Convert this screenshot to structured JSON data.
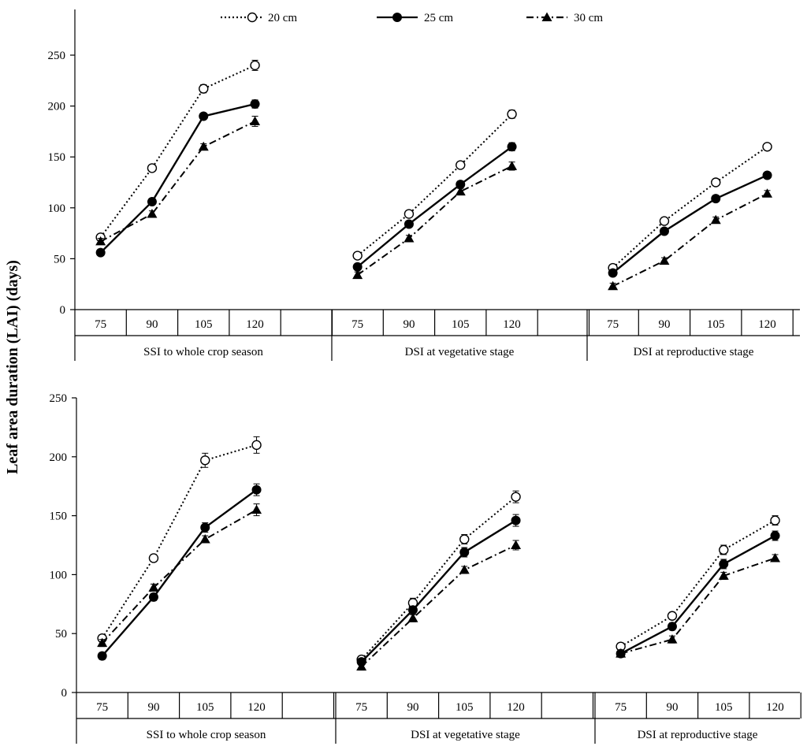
{
  "ylabel": "Leaf area duration (LAI) (days)",
  "chart_data": [
    {
      "type": "line",
      "title": "",
      "xlabel": "",
      "ylabel": "Leaf area duration (LAI) (days)",
      "ylim": [
        0,
        250
      ],
      "yticks": [
        0,
        50,
        100,
        150,
        200,
        250
      ],
      "legend_position": "top-center",
      "groups": [
        {
          "label": "SSI to whole crop season",
          "categories": [
            "75",
            "90",
            "105",
            "120"
          ]
        },
        {
          "label": "DSI at vegetative stage",
          "categories": [
            "75",
            "90",
            "105",
            "120"
          ]
        },
        {
          "label": "DSI at reproductive stage",
          "categories": [
            "75",
            "90",
            "105",
            "120"
          ]
        }
      ],
      "series": [
        {
          "name": "20 cm",
          "values": [
            [
              71,
              139,
              217,
              240
            ],
            [
              53,
              94,
              142,
              192
            ],
            [
              41,
              87,
              125,
              160
            ]
          ],
          "errors": [
            [
              3,
              3,
              4,
              5
            ],
            [
              3,
              3,
              3,
              4
            ],
            [
              3,
              3,
              3,
              3
            ]
          ]
        },
        {
          "name": "25 cm",
          "values": [
            [
              56,
              106,
              190,
              202
            ],
            [
              42,
              84,
              123,
              160
            ],
            [
              36,
              77,
              109,
              132
            ]
          ],
          "errors": [
            [
              3,
              3,
              3,
              4
            ],
            [
              3,
              3,
              3,
              4
            ],
            [
              3,
              3,
              3,
              3
            ]
          ]
        },
        {
          "name": "30 cm",
          "values": [
            [
              67,
              94,
              160,
              185
            ],
            [
              34,
              70,
              116,
              141
            ],
            [
              23,
              48,
              88,
              114
            ]
          ],
          "errors": [
            [
              3,
              3,
              3,
              5
            ],
            [
              3,
              3,
              3,
              4
            ],
            [
              3,
              3,
              3,
              3
            ]
          ]
        }
      ]
    },
    {
      "type": "line",
      "title": "",
      "xlabel": "",
      "ylabel": "Leaf area duration (LAI) (days)",
      "ylim": [
        0,
        250
      ],
      "yticks": [
        0,
        50,
        100,
        150,
        200,
        250
      ],
      "groups": [
        {
          "label": "SSI to whole crop season",
          "categories": [
            "75",
            "90",
            "105",
            "120"
          ]
        },
        {
          "label": "DSI at vegetative stage",
          "categories": [
            "75",
            "90",
            "105",
            "120"
          ]
        },
        {
          "label": "DSI at reproductive stage",
          "categories": [
            "75",
            "90",
            "105",
            "120"
          ]
        }
      ],
      "series": [
        {
          "name": "20 cm",
          "values": [
            [
              46,
              114,
              197,
              210
            ],
            [
              28,
              76,
              130,
              166
            ],
            [
              39,
              65,
              121,
              146
            ]
          ],
          "errors": [
            [
              3,
              3,
              6,
              7
            ],
            [
              3,
              4,
              4,
              5
            ],
            [
              3,
              3,
              4,
              4
            ]
          ]
        },
        {
          "name": "25 cm",
          "values": [
            [
              31,
              81,
              140,
              172
            ],
            [
              26,
              70,
              119,
              146
            ],
            [
              33,
              56,
              109,
              133
            ]
          ],
          "errors": [
            [
              3,
              3,
              4,
              5
            ],
            [
              3,
              3,
              4,
              5
            ],
            [
              3,
              3,
              4,
              4
            ]
          ]
        },
        {
          "name": "30 cm",
          "values": [
            [
              42,
              89,
              130,
              155
            ],
            [
              22,
              63,
              104,
              125
            ],
            [
              33,
              45,
              99,
              114
            ]
          ],
          "errors": [
            [
              3,
              3,
              3,
              5
            ],
            [
              3,
              3,
              3,
              4
            ],
            [
              3,
              3,
              3,
              3
            ]
          ]
        }
      ]
    }
  ]
}
